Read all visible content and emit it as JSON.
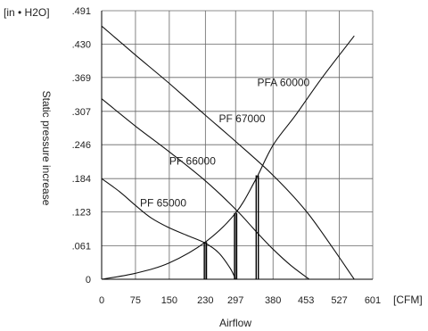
{
  "chart_data": {
    "type": "line",
    "title": "",
    "xlabel": "Airflow",
    "ylabel": "Static pressure increase",
    "x_unit": "[CFM]",
    "y_unit": "[in • H2O]",
    "xlim": [
      0,
      601
    ],
    "ylim": [
      0,
      0.491
    ],
    "x_ticks": [
      0,
      75,
      150,
      230,
      297,
      380,
      453,
      527,
      601
    ],
    "x_tick_labels": [
      "0",
      "75",
      "150",
      "230",
      "297",
      "380",
      "453",
      "527",
      "601"
    ],
    "y_ticks": [
      0,
      0.061,
      0.123,
      0.184,
      0.246,
      0.307,
      0.369,
      0.43,
      0.491
    ],
    "y_tick_labels": [
      "0",
      ".061",
      ".123",
      ".184",
      ".246",
      ".307",
      ".369",
      ".430",
      ".491"
    ],
    "grid": true,
    "series": [
      {
        "name": "PFA 60000",
        "values": [
          [
            0,
            0.463
          ],
          [
            75,
            0.41
          ],
          [
            150,
            0.358
          ],
          [
            230,
            0.3
          ],
          [
            297,
            0.252
          ],
          [
            380,
            0.19
          ],
          [
            453,
            0.125
          ],
          [
            510,
            0.06
          ],
          [
            560,
            0
          ]
        ]
      },
      {
        "name": "PF 67000",
        "values": [
          [
            0,
            0.33
          ],
          [
            75,
            0.28
          ],
          [
            150,
            0.233
          ],
          [
            230,
            0.18
          ],
          [
            297,
            0.128
          ],
          [
            345,
            0.085
          ],
          [
            380,
            0.055
          ],
          [
            420,
            0.025
          ],
          [
            460,
            0
          ]
        ]
      },
      {
        "name": "PF 66000",
        "values": [
          [
            0,
            0.184
          ],
          [
            40,
            0.16
          ],
          [
            75,
            0.135
          ],
          [
            110,
            0.112
          ],
          [
            150,
            0.094
          ],
          [
            190,
            0.08
          ],
          [
            230,
            0.066
          ],
          [
            260,
            0.048
          ],
          [
            285,
            0.02
          ],
          [
            297,
            0
          ]
        ]
      },
      {
        "name": "PF 65000",
        "values": [
          [
            0,
            0
          ],
          [
            75,
            0.011
          ],
          [
            150,
            0.03
          ],
          [
            230,
            0.068
          ],
          [
            297,
            0.121
          ],
          [
            340,
            0.18
          ],
          [
            380,
            0.245
          ],
          [
            430,
            0.3
          ],
          [
            490,
            0.37
          ],
          [
            560,
            0.445
          ]
        ]
      }
    ],
    "annotations": [
      {
        "text": "PFA 60000",
        "x": 345,
        "y": 0.353
      },
      {
        "text": "PF 67000",
        "x": 260,
        "y": 0.287
      },
      {
        "text": "PF 66000",
        "x": 150,
        "y": 0.21
      },
      {
        "text": "PF 65000",
        "x": 85,
        "y": 0.133
      }
    ],
    "operating_points": [
      {
        "x": 230,
        "y": 0.068
      },
      {
        "x": 297,
        "y": 0.121
      },
      {
        "x": 345,
        "y": 0.19
      }
    ]
  }
}
